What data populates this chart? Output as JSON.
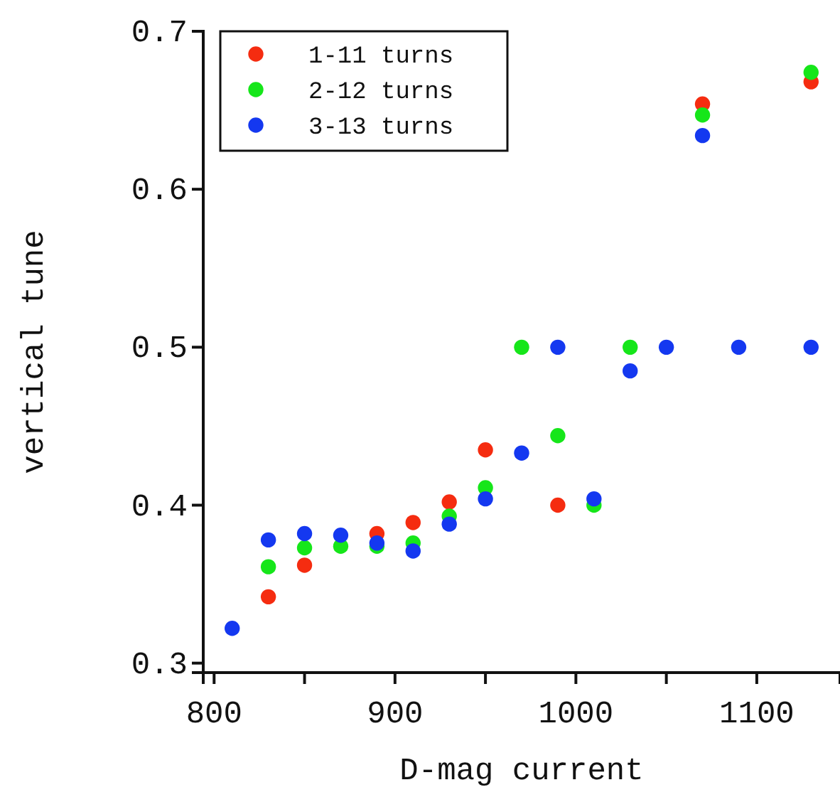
{
  "chart_data": {
    "type": "scatter",
    "xlabel": "D-mag current",
    "ylabel": "vertical tune",
    "xlim": [
      794,
      1146
    ],
    "ylim": [
      0.294,
      0.7
    ],
    "xticks": [
      800,
      {
        "value": 850,
        "label": null
      },
      900,
      {
        "value": 950,
        "label": null
      },
      1000,
      {
        "value": 1050,
        "label": null
      },
      1100
    ],
    "yticks": [
      0.3,
      0.4,
      0.5,
      0.6,
      0.7
    ],
    "grid": false,
    "legend": "top left",
    "marker": "circle",
    "series": [
      {
        "name": "1-11 turns",
        "color": "#f52c10",
        "x": [
          830,
          850,
          890,
          910,
          930,
          950,
          990,
          1070,
          1130
        ],
        "values": [
          0.342,
          0.362,
          0.382,
          0.389,
          0.402,
          0.435,
          0.4,
          0.654,
          0.668
        ]
      },
      {
        "name": "2-12 turns",
        "color": "#16e61a",
        "x": [
          830,
          850,
          870,
          890,
          910,
          930,
          950,
          970,
          990,
          1010,
          1030,
          1070,
          1130
        ],
        "values": [
          0.361,
          0.373,
          0.374,
          0.374,
          0.376,
          0.393,
          0.411,
          0.5,
          0.444,
          0.4,
          0.5,
          0.647,
          0.674
        ]
      },
      {
        "name": "3-13 turns",
        "color": "#1438f0",
        "x": [
          810,
          830,
          850,
          870,
          890,
          910,
          930,
          950,
          970,
          990,
          1010,
          1030,
          1050,
          1070,
          1090,
          1130
        ],
        "values": [
          0.322,
          0.378,
          0.382,
          0.381,
          0.376,
          0.371,
          0.388,
          0.404,
          0.433,
          0.5,
          0.404,
          0.485,
          0.5,
          0.634,
          0.5,
          0.5
        ]
      }
    ]
  }
}
